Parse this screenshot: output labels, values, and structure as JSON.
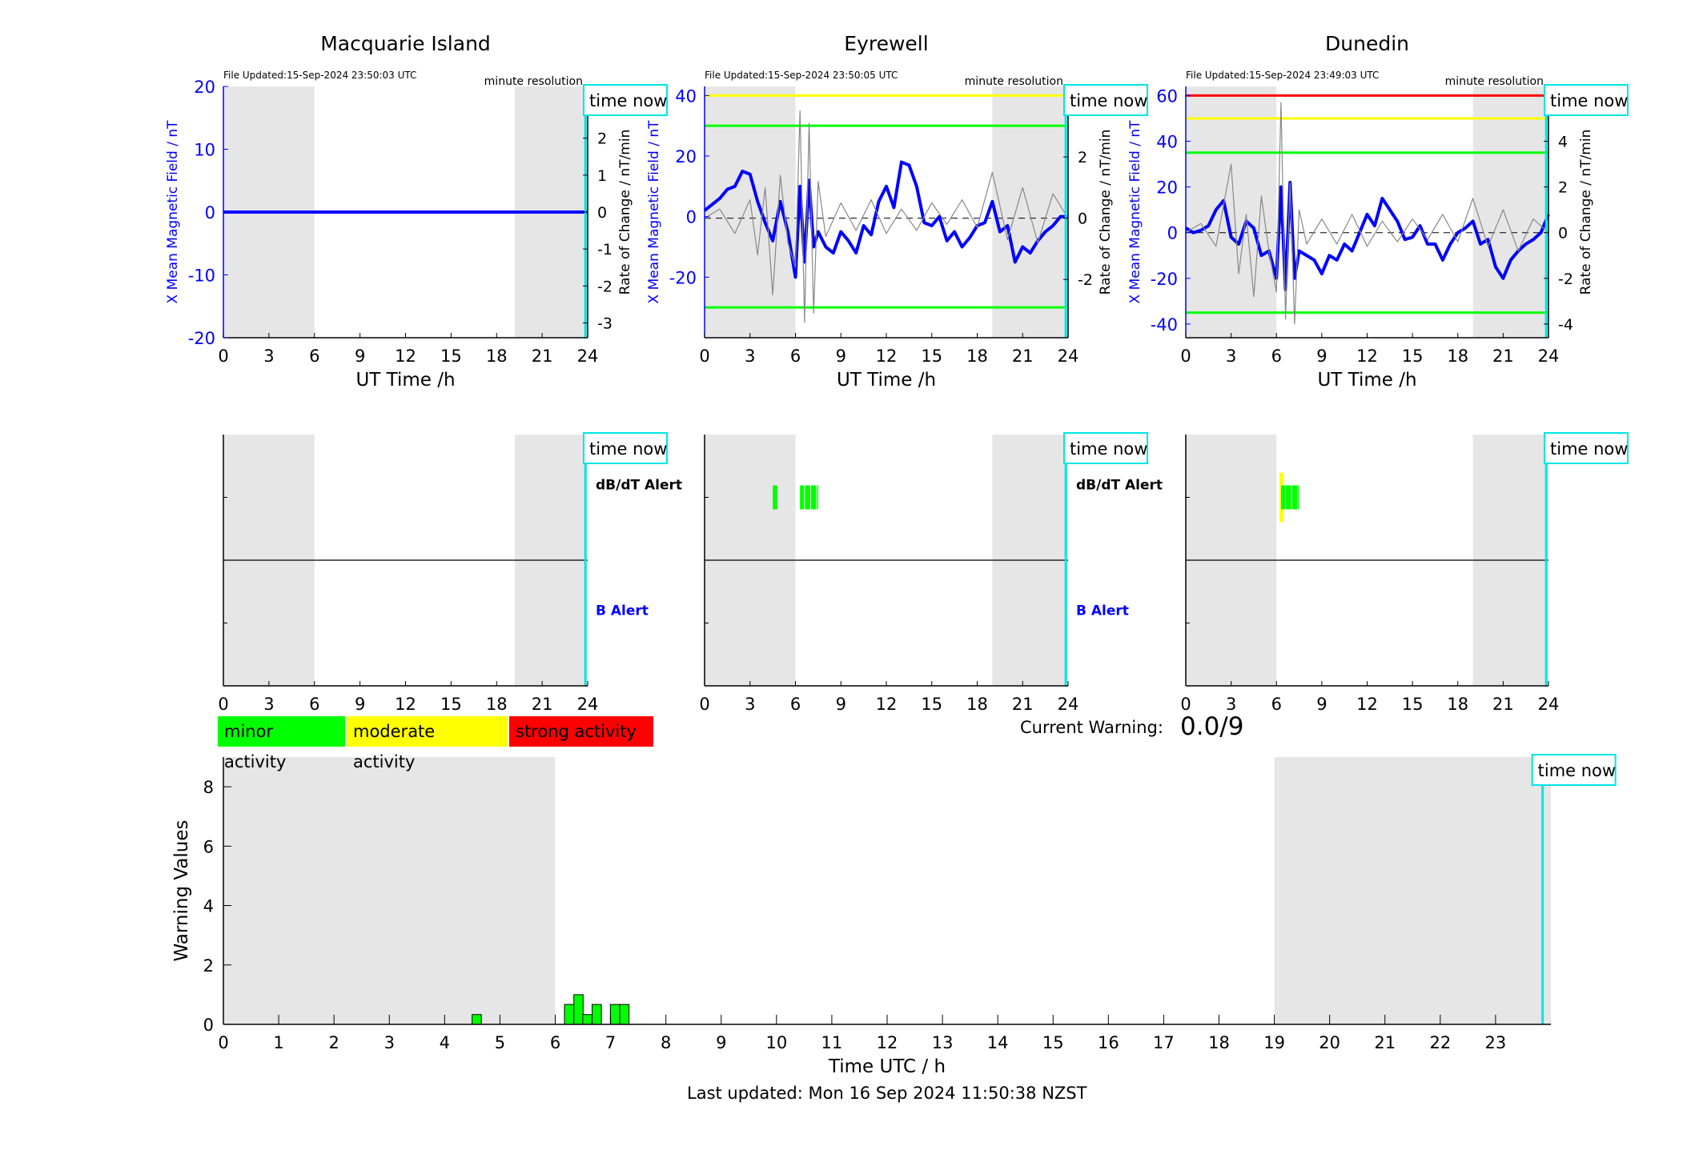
{
  "page": {
    "last_updated": "Last updated: Mon 16 Sep 2024 11:50:38 NZST",
    "current_warning_label": "Current Warning:",
    "current_warning_value": "0.0/9",
    "time_now_label": "time now"
  },
  "legend": {
    "minor": "minor activity",
    "moderate": "moderate activity",
    "strong": "strong activity",
    "minor_color": "#00ff00",
    "moderate_color": "#ffff00",
    "strong_color": "#ff0000"
  },
  "colors": {
    "field_line": "#0000ff",
    "rate_line": "#888888",
    "time_now": "#00e5e5",
    "night_shade": "#e6e6e6"
  },
  "chart_data": [
    {
      "type": "line",
      "title": "Macquarie Island",
      "file_updated": "File Updated:15-Sep-2024 23:50:03 UTC",
      "resolution": "minute resolution",
      "xlabel": "UT Time /h",
      "ylabel_left": "X Mean Magnetic Field / nT",
      "ylabel_right": "Rate of Change / nT/min",
      "xlim": [
        0,
        24
      ],
      "ylim_left": [
        -20,
        20
      ],
      "ylim_right": [
        -3.4,
        3.4
      ],
      "x_ticks": [
        "0",
        "3",
        "6",
        "9",
        "12",
        "15",
        "18",
        "21",
        "24"
      ],
      "y_ticks_left": [
        "-20",
        "-10",
        "0",
        "10",
        "20"
      ],
      "y_ticks_right": [
        "-3",
        "-2",
        "-1",
        "0",
        "1",
        "2",
        "3"
      ],
      "shaded_hours": [
        [
          0,
          6
        ],
        [
          19.2,
          24
        ]
      ],
      "thresholds": [],
      "time_now": 23.85,
      "series": [
        {
          "name": "X Mean Magnetic Field",
          "axis": "left",
          "x": [
            0,
            24
          ],
          "y": [
            0,
            0
          ]
        }
      ]
    },
    {
      "type": "line",
      "title": "Eyrewell",
      "file_updated": "File Updated:15-Sep-2024 23:50:05 UTC",
      "resolution": "minute resolution",
      "xlabel": "UT Time /h",
      "ylabel_left": "X Mean Magnetic Field / nT",
      "ylabel_right": "Rate of Change / nT/min",
      "xlim": [
        0,
        24
      ],
      "ylim_left": [
        -40,
        43
      ],
      "ylim_right": [
        -3.9,
        4.3
      ],
      "x_ticks": [
        "0",
        "3",
        "6",
        "9",
        "12",
        "15",
        "18",
        "21",
        "24"
      ],
      "y_ticks_left": [
        "-20",
        "0",
        "20",
        "40"
      ],
      "y_ticks_right": [
        "-2",
        "0",
        "2",
        "4"
      ],
      "shaded_hours": [
        [
          0,
          6
        ],
        [
          19,
          24
        ]
      ],
      "thresholds": [
        {
          "value": 40,
          "color": "#ffff00"
        },
        {
          "value": 30,
          "color": "#00ff00"
        },
        {
          "value": -30,
          "color": "#00ff00"
        }
      ],
      "time_now": 23.85,
      "series": [
        {
          "name": "X Mean Magnetic Field",
          "axis": "left",
          "x": [
            0,
            0.5,
            1,
            1.5,
            2,
            2.5,
            3,
            3.5,
            4,
            4.5,
            5,
            5.5,
            6,
            6.3,
            6.6,
            6.9,
            7.2,
            7.5,
            8,
            8.5,
            9,
            9.5,
            10,
            10.5,
            11,
            11.5,
            12,
            12.5,
            13,
            13.5,
            14,
            14.5,
            15,
            15.5,
            16,
            16.5,
            17,
            17.5,
            18,
            18.5,
            19,
            19.5,
            20,
            20.5,
            21,
            21.5,
            22,
            22.5,
            23,
            23.5,
            24
          ],
          "y": [
            2,
            4,
            6,
            9,
            10,
            15,
            14,
            5,
            -2,
            -8,
            5,
            -5,
            -20,
            10,
            -15,
            12,
            -10,
            -5,
            -10,
            -12,
            -5,
            -8,
            -12,
            -3,
            -6,
            5,
            10,
            3,
            18,
            17,
            10,
            -2,
            -3,
            0,
            -8,
            -5,
            -10,
            -7,
            -3,
            -2,
            5,
            -5,
            -3,
            -15,
            -10,
            -12,
            -8,
            -5,
            -3,
            0,
            0
          ]
        },
        {
          "name": "Rate of Change",
          "axis": "right",
          "x": [
            0,
            1,
            2,
            3,
            3.5,
            4,
            4.5,
            5,
            5.5,
            6,
            6.3,
            6.6,
            6.9,
            7.2,
            7.5,
            8,
            9,
            10,
            11,
            12,
            13,
            14,
            15,
            16,
            17,
            18,
            19,
            20,
            21,
            22,
            23,
            24
          ],
          "y": [
            0,
            0.3,
            -0.5,
            0.6,
            -1.2,
            1.0,
            -2.5,
            1.4,
            -0.8,
            -1.6,
            3.5,
            -3.4,
            3.1,
            -3.1,
            1.2,
            -0.6,
            0.5,
            -0.4,
            0.6,
            -0.5,
            0.3,
            -0.4,
            0.5,
            -0.2,
            0.6,
            -0.3,
            1.5,
            -0.7,
            1.0,
            -0.8,
            0.8,
            0
          ]
        }
      ]
    },
    {
      "type": "line",
      "title": "Dunedin",
      "file_updated": "File Updated:15-Sep-2024 23:49:03 UTC",
      "resolution": "minute resolution",
      "xlabel": "UT Time /h",
      "ylabel_left": "X Mean Magnetic Field / nT",
      "ylabel_right": "Rate of Change / nT/min",
      "xlim": [
        0,
        24
      ],
      "ylim_left": [
        -46,
        64
      ],
      "ylim_right": [
        -4.6,
        6.4
      ],
      "x_ticks": [
        "0",
        "3",
        "6",
        "9",
        "12",
        "15",
        "18",
        "21",
        "24"
      ],
      "y_ticks_left": [
        "-40",
        "-20",
        "0",
        "20",
        "40",
        "60"
      ],
      "y_ticks_right": [
        "-4",
        "-2",
        "0",
        "2",
        "4",
        "6"
      ],
      "shaded_hours": [
        [
          0,
          6
        ],
        [
          19,
          24
        ]
      ],
      "thresholds": [
        {
          "value": 60,
          "color": "#ff0000"
        },
        {
          "value": 50,
          "color": "#ffff00"
        },
        {
          "value": 35,
          "color": "#00ff00"
        },
        {
          "value": -35,
          "color": "#00ff00"
        }
      ],
      "time_now": 23.85,
      "series": [
        {
          "name": "X Mean Magnetic Field",
          "axis": "left",
          "x": [
            0,
            0.5,
            1,
            1.5,
            2,
            2.5,
            3,
            3.5,
            4,
            4.5,
            5,
            5.5,
            6,
            6.3,
            6.6,
            6.9,
            7.2,
            7.5,
            8,
            8.5,
            9,
            9.5,
            10,
            10.5,
            11,
            11.5,
            12,
            12.5,
            13,
            13.5,
            14,
            14.5,
            15,
            15.5,
            16,
            16.5,
            17,
            17.5,
            18,
            18.5,
            19,
            19.5,
            20,
            20.5,
            21,
            21.5,
            22,
            22.5,
            23,
            23.5,
            24
          ],
          "y": [
            2,
            0,
            1,
            3,
            10,
            14,
            -2,
            -5,
            5,
            2,
            -10,
            -8,
            -20,
            20,
            -25,
            22,
            -20,
            -8,
            -10,
            -12,
            -18,
            -10,
            -12,
            -5,
            -8,
            0,
            8,
            3,
            15,
            10,
            5,
            -3,
            -2,
            3,
            -5,
            -5,
            -12,
            -5,
            0,
            2,
            5,
            -5,
            -3,
            -15,
            -20,
            -12,
            -8,
            -5,
            -3,
            0,
            8
          ]
        },
        {
          "name": "Rate of Change",
          "axis": "right",
          "x": [
            0,
            1,
            2,
            3,
            3.5,
            4,
            4.5,
            5,
            5.5,
            6,
            6.3,
            6.6,
            6.9,
            7.2,
            7.5,
            8,
            9,
            10,
            11,
            12,
            13,
            14,
            15,
            16,
            17,
            18,
            19,
            20,
            21,
            22,
            23,
            24
          ],
          "y": [
            0,
            0.4,
            -0.6,
            3.0,
            -1.8,
            0.8,
            -2.8,
            1.6,
            -0.8,
            -2.6,
            5.7,
            -3.8,
            2.2,
            -4.0,
            1.0,
            -0.5,
            0.6,
            -0.5,
            0.8,
            -0.6,
            0.5,
            -0.4,
            0.6,
            -0.3,
            0.8,
            -0.4,
            1.5,
            -0.6,
            1.0,
            -0.8,
            0.6,
            0
          ]
        }
      ]
    },
    {
      "type": "bar",
      "title": "",
      "panel": "Macquarie Island alerts",
      "xlim": [
        0,
        24
      ],
      "x_ticks": [
        "0",
        "3",
        "6",
        "9",
        "12",
        "15",
        "18",
        "21",
        "24"
      ],
      "dbdt_label": "dB/dT Alert",
      "b_label": "B Alert",
      "shaded_hours": [
        [
          0,
          6
        ],
        [
          19.2,
          24
        ]
      ],
      "time_now": 23.85,
      "dbdt_alerts": [],
      "b_alerts": []
    },
    {
      "type": "bar",
      "title": "",
      "panel": "Eyrewell alerts",
      "xlim": [
        0,
        24
      ],
      "x_ticks": [
        "0",
        "3",
        "6",
        "9",
        "12",
        "15",
        "18",
        "21",
        "24"
      ],
      "dbdt_label": "dB/dT Alert",
      "b_label": "B Alert",
      "shaded_hours": [
        [
          0,
          6
        ],
        [
          19,
          24
        ]
      ],
      "time_now": 23.85,
      "dbdt_alerts": [
        {
          "start": 4.5,
          "end": 4.8,
          "level": "minor"
        },
        {
          "start": 6.3,
          "end": 7.5,
          "level": "minor"
        }
      ],
      "b_alerts": []
    },
    {
      "type": "bar",
      "title": "",
      "panel": "Dunedin alerts",
      "xlim": [
        0,
        24
      ],
      "x_ticks": [
        "0",
        "3",
        "6",
        "9",
        "12",
        "15",
        "18",
        "21",
        "24"
      ],
      "dbdt_label": "",
      "b_label": "",
      "shaded_hours": [
        [
          0,
          6
        ],
        [
          19,
          24
        ]
      ],
      "time_now": 23.85,
      "dbdt_alerts": [
        {
          "start": 6.2,
          "end": 6.45,
          "level": "moderate"
        },
        {
          "start": 6.3,
          "end": 7.5,
          "level": "minor"
        }
      ],
      "b_alerts": []
    },
    {
      "type": "bar",
      "title": "",
      "xlabel": "Time UTC / h",
      "ylabel": "Warning Values",
      "xlim": [
        0,
        24
      ],
      "ylim": [
        0,
        9
      ],
      "x_ticks": [
        "0",
        "1",
        "2",
        "3",
        "4",
        "5",
        "6",
        "7",
        "8",
        "9",
        "10",
        "11",
        "12",
        "13",
        "14",
        "15",
        "16",
        "17",
        "18",
        "19",
        "20",
        "21",
        "22",
        "23"
      ],
      "y_ticks": [
        "0",
        "2",
        "4",
        "6",
        "8"
      ],
      "shaded_hours": [
        [
          0,
          6
        ],
        [
          19,
          24
        ]
      ],
      "time_now": 23.85,
      "bar_width": 0.167,
      "x": [
        4.58,
        6.25,
        6.42,
        6.58,
        6.75,
        7.08,
        7.25
      ],
      "values": [
        0.33,
        0.67,
        1.0,
        0.33,
        0.67,
        0.67,
        0.67
      ]
    }
  ]
}
